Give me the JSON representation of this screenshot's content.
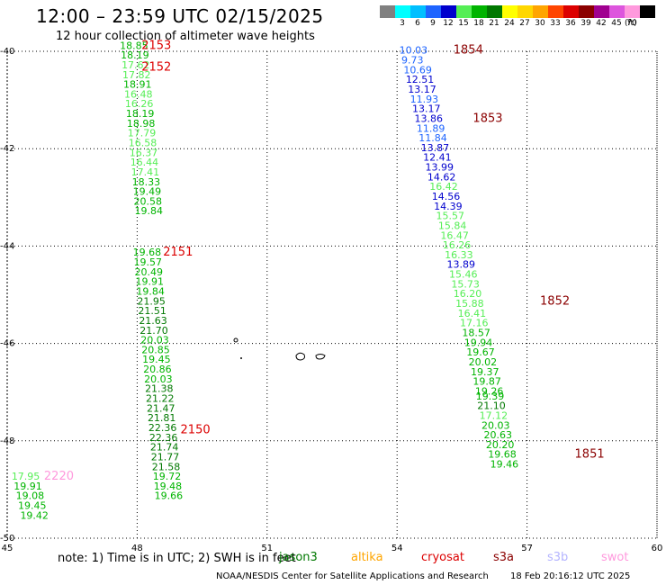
{
  "header": {
    "title": "12:00 – 23:59 UTC 02/15/2025",
    "subtitle": "12 hour collection of altimeter wave heights"
  },
  "legend": {
    "bins": [
      {
        "label": "",
        "color": "#808080"
      },
      {
        "label": "3",
        "color": "#00ffff"
      },
      {
        "label": "6",
        "color": "#00bfff"
      },
      {
        "label": "9",
        "color": "#1e64ff"
      },
      {
        "label": "12",
        "color": "#0000cd"
      },
      {
        "label": "15",
        "color": "#55ee55"
      },
      {
        "label": "18",
        "color": "#00b400"
      },
      {
        "label": "21",
        "color": "#007800"
      },
      {
        "label": "24",
        "color": "#ffff00"
      },
      {
        "label": "27",
        "color": "#ffd700"
      },
      {
        "label": "30",
        "color": "#ffa500"
      },
      {
        "label": "33",
        "color": "#ff4500"
      },
      {
        "label": "36",
        "color": "#dc0000"
      },
      {
        "label": "39",
        "color": "#8b0000"
      },
      {
        "label": "42",
        "color": "#a00090"
      },
      {
        "label": "45",
        "color": "#dd55dd"
      },
      {
        "label": "70",
        "color": "#ff99dd"
      },
      {
        "label": "",
        "color": "#000000"
      }
    ],
    "unit": "(ft)"
  },
  "footer": {
    "note": "note: 1) Time is in UTC; 2) SWH is in feet",
    "satellites": [
      {
        "name": "jason3",
        "color": "#007800"
      },
      {
        "name": "altika",
        "color": "#ffa500"
      },
      {
        "name": "cryosat",
        "color": "#dc0000"
      },
      {
        "name": "s3a",
        "color": "#8b0000"
      },
      {
        "name": "s3b",
        "color": "#b4b4ff"
      },
      {
        "name": "swot",
        "color": "#ff99dd"
      }
    ],
    "credit": "NOAA/NESDIS Center for Satellite Applications and Research",
    "generated": "18 Feb 20:16:12 UTC 2025"
  },
  "chart_data": {
    "type": "scatter",
    "title": "12:00 – 23:59 UTC 02/15/2025",
    "subtitle": "12 hour collection of altimeter wave heights",
    "x_axis": {
      "ticks": [
        45,
        48,
        51,
        54,
        57,
        60
      ],
      "range": [
        45,
        60
      ]
    },
    "y_axis": {
      "ticks": [
        -40,
        -42,
        -44,
        -46,
        -48,
        -50
      ],
      "range": [
        -50,
        -40
      ]
    },
    "grid": "dotted",
    "units": "ft",
    "tracks": [
      {
        "x": [
          48.0,
          47.95,
          47.9,
          47.85,
          47.8,
          47.75
        ],
        "labels": [
          {
            "text": "2153",
            "x": 48.1,
            "y": -39.95
          },
          {
            "text": "2152",
            "x": 48.1,
            "y": -40.4
          },
          {
            "text": "2151",
            "x": 48.6,
            "y": -44.2
          },
          {
            "text": "2150",
            "x": 49.0,
            "y": -47.85
          }
        ],
        "label_color": "#dc0000",
        "points": [
          {
            "x": 47.6,
            "y": -39.95,
            "v": "18.85"
          },
          {
            "x": 47.62,
            "y": -40.15,
            "v": "18.19"
          },
          {
            "x": 47.64,
            "y": -40.35,
            "v": "17.62"
          },
          {
            "x": 47.66,
            "y": -40.55,
            "v": "17.82"
          },
          {
            "x": 47.68,
            "y": -40.75,
            "v": "18.91"
          },
          {
            "x": 47.7,
            "y": -40.95,
            "v": "16.48"
          },
          {
            "x": 47.72,
            "y": -41.15,
            "v": "16.26"
          },
          {
            "x": 47.74,
            "y": -41.35,
            "v": "18.19"
          },
          {
            "x": 47.76,
            "y": -41.55,
            "v": "18.98"
          },
          {
            "x": 47.78,
            "y": -41.75,
            "v": "17.79"
          },
          {
            "x": 47.8,
            "y": -41.95,
            "v": "16.58"
          },
          {
            "x": 47.82,
            "y": -42.15,
            "v": "16.37"
          },
          {
            "x": 47.84,
            "y": -42.35,
            "v": "16.44"
          },
          {
            "x": 47.86,
            "y": -42.55,
            "v": "17.41"
          },
          {
            "x": 47.88,
            "y": -42.75,
            "v": "18.33"
          },
          {
            "x": 47.9,
            "y": -42.95,
            "v": "19.49"
          },
          {
            "x": 47.92,
            "y": -43.15,
            "v": "20.58"
          },
          {
            "x": 47.94,
            "y": -43.35,
            "v": "19.84"
          },
          {
            "x": 47.9,
            "y": -44.2,
            "v": "19.68"
          },
          {
            "x": 47.92,
            "y": -44.4,
            "v": "19.57"
          },
          {
            "x": 47.94,
            "y": -44.6,
            "v": "20.49"
          },
          {
            "x": 47.96,
            "y": -44.8,
            "v": "19.91"
          },
          {
            "x": 47.98,
            "y": -45.0,
            "v": "19.84"
          },
          {
            "x": 48.0,
            "y": -45.2,
            "v": "21.95"
          },
          {
            "x": 48.02,
            "y": -45.4,
            "v": "21.51"
          },
          {
            "x": 48.04,
            "y": -45.6,
            "v": "21.63"
          },
          {
            "x": 48.06,
            "y": -45.8,
            "v": "21.70"
          },
          {
            "x": 48.08,
            "y": -46.0,
            "v": "20.03"
          },
          {
            "x": 48.1,
            "y": -46.2,
            "v": "20.85"
          },
          {
            "x": 48.12,
            "y": -46.4,
            "v": "19.45"
          },
          {
            "x": 48.14,
            "y": -46.6,
            "v": "20.86"
          },
          {
            "x": 48.16,
            "y": -46.8,
            "v": "20.03"
          },
          {
            "x": 48.18,
            "y": -47.0,
            "v": "21.38"
          },
          {
            "x": 48.2,
            "y": -47.2,
            "v": "21.22"
          },
          {
            "x": 48.22,
            "y": -47.4,
            "v": "21.47"
          },
          {
            "x": 48.24,
            "y": -47.6,
            "v": "21.81"
          },
          {
            "x": 48.26,
            "y": -47.8,
            "v": "22.36"
          },
          {
            "x": 48.28,
            "y": -48.0,
            "v": "22.36"
          },
          {
            "x": 48.3,
            "y": -48.2,
            "v": "21.74"
          },
          {
            "x": 48.32,
            "y": -48.4,
            "v": "21.77"
          },
          {
            "x": 48.34,
            "y": -48.6,
            "v": "21.58"
          },
          {
            "x": 48.36,
            "y": -48.8,
            "v": "19.72"
          },
          {
            "x": 48.38,
            "y": -49.0,
            "v": "19.48"
          },
          {
            "x": 48.4,
            "y": -49.2,
            "v": "19.66"
          }
        ]
      },
      {
        "labels": [
          {
            "text": "1854",
            "x": 55.3,
            "y": -40.05
          },
          {
            "text": "1853",
            "x": 55.75,
            "y": -41.45
          },
          {
            "text": "1852",
            "x": 57.3,
            "y": -45.2
          },
          {
            "text": "1851",
            "x": 58.1,
            "y": -48.35
          }
        ],
        "label_color": "#8b0000",
        "points": [
          {
            "x": 54.05,
            "y": -40.05,
            "v": "10.03"
          },
          {
            "x": 54.1,
            "y": -40.25,
            "v": "9.73"
          },
          {
            "x": 54.15,
            "y": -40.45,
            "v": "10.69"
          },
          {
            "x": 54.2,
            "y": -40.65,
            "v": "12.51"
          },
          {
            "x": 54.25,
            "y": -40.85,
            "v": "13.17"
          },
          {
            "x": 54.3,
            "y": -41.05,
            "v": "11.93"
          },
          {
            "x": 54.35,
            "y": -41.25,
            "v": "13.17"
          },
          {
            "x": 54.4,
            "y": -41.45,
            "v": "13.86"
          },
          {
            "x": 54.45,
            "y": -41.65,
            "v": "11.89"
          },
          {
            "x": 54.5,
            "y": -41.85,
            "v": "11.84"
          },
          {
            "x": 54.55,
            "y": -42.05,
            "v": "13.87"
          },
          {
            "x": 54.6,
            "y": -42.25,
            "v": "12.41"
          },
          {
            "x": 54.65,
            "y": -42.45,
            "v": "13.99"
          },
          {
            "x": 54.7,
            "y": -42.65,
            "v": "14.62"
          },
          {
            "x": 54.75,
            "y": -42.85,
            "v": "16.42"
          },
          {
            "x": 54.8,
            "y": -43.05,
            "v": "14.56"
          },
          {
            "x": 54.85,
            "y": -43.25,
            "v": "14.39"
          },
          {
            "x": 54.9,
            "y": -43.45,
            "v": "15.57"
          },
          {
            "x": 54.95,
            "y": -43.65,
            "v": "15.84"
          },
          {
            "x": 55.0,
            "y": -43.85,
            "v": "16.47"
          },
          {
            "x": 55.05,
            "y": -44.05,
            "v": "16.26"
          },
          {
            "x": 55.1,
            "y": -44.25,
            "v": "16.33"
          },
          {
            "x": 55.15,
            "y": -44.45,
            "v": "13.89"
          },
          {
            "x": 55.2,
            "y": -44.65,
            "v": "15.46"
          },
          {
            "x": 55.25,
            "y": -44.85,
            "v": "15.73"
          },
          {
            "x": 55.3,
            "y": -45.05,
            "v": "16.20"
          },
          {
            "x": 55.35,
            "y": -45.25,
            "v": "15.88"
          },
          {
            "x": 55.4,
            "y": -45.45,
            "v": "16.41"
          },
          {
            "x": 55.45,
            "y": -45.65,
            "v": "17.16"
          },
          {
            "x": 55.5,
            "y": -45.85,
            "v": "18.57"
          },
          {
            "x": 55.55,
            "y": -46.05,
            "v": "19.94"
          },
          {
            "x": 55.6,
            "y": -46.25,
            "v": "19.67"
          },
          {
            "x": 55.65,
            "y": -46.45,
            "v": "20.02"
          },
          {
            "x": 55.7,
            "y": -46.65,
            "v": "19.37"
          },
          {
            "x": 55.75,
            "y": -46.85,
            "v": "19.87"
          },
          {
            "x": 55.8,
            "y": -47.05,
            "v": "19.26"
          },
          {
            "x": 55.82,
            "y": -47.15,
            "v": "19.39"
          },
          {
            "x": 55.85,
            "y": -47.35,
            "v": "21.10"
          },
          {
            "x": 55.9,
            "y": -47.55,
            "v": "17.12"
          },
          {
            "x": 55.95,
            "y": -47.75,
            "v": "20.03"
          },
          {
            "x": 56.0,
            "y": -47.95,
            "v": "20.63"
          },
          {
            "x": 56.05,
            "y": -48.15,
            "v": "20.20"
          },
          {
            "x": 56.1,
            "y": -48.35,
            "v": "19.68"
          },
          {
            "x": 56.15,
            "y": -48.55,
            "v": "19.46"
          }
        ]
      },
      {
        "labels": [
          {
            "text": "2220",
            "x": 45.85,
            "y": -48.8
          }
        ],
        "label_color": "#ff99dd",
        "points": [
          {
            "x": 45.1,
            "y": -48.8,
            "v": "17.95"
          },
          {
            "x": 45.15,
            "y": -49.0,
            "v": "19.91"
          },
          {
            "x": 45.2,
            "y": -49.2,
            "v": "19.08"
          },
          {
            "x": 45.25,
            "y": -49.4,
            "v": "19.45"
          },
          {
            "x": 45.3,
            "y": -49.6,
            "v": "19.42"
          }
        ]
      }
    ]
  }
}
